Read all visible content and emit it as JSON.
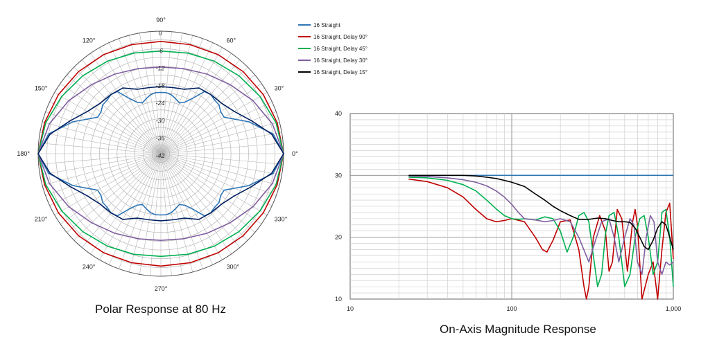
{
  "chart_data": [
    {
      "type": "polar",
      "title": "Polar Response at 80 Hz",
      "angle_labels": [
        "0°",
        "30°",
        "60°",
        "90°",
        "120°",
        "150°",
        "180°",
        "210°",
        "240°",
        "270°",
        "300°",
        "330°"
      ],
      "radial_labels": [
        "0",
        "-6",
        "-12",
        "-18",
        "-24",
        "-30",
        "-36",
        "-42"
      ],
      "rlim": [
        -42,
        0
      ],
      "series": [
        {
          "name": "16 Straight",
          "color": "#2e75b6",
          "angles": [
            0,
            10,
            20,
            30,
            35,
            40,
            45,
            50,
            55,
            60,
            65,
            70,
            75,
            80,
            85,
            90,
            95,
            100,
            105,
            110,
            115,
            120,
            125,
            130,
            135,
            140,
            145,
            150,
            160,
            170,
            180
          ],
          "values": [
            0,
            -3,
            -10,
            -17,
            -17,
            -16,
            -16,
            -15.5,
            -16,
            -20,
            -22.5,
            -23.5,
            -22.5,
            -21.5,
            -21,
            -21,
            -21,
            -21.5,
            -22.5,
            -23.5,
            -22.5,
            -20,
            -16,
            -15.5,
            -16,
            -16,
            -17,
            -17,
            -10,
            -3,
            0
          ]
        },
        {
          "name": "16 Straight, Delay 90°",
          "color": "#c00000",
          "angles": [
            0,
            15,
            30,
            45,
            60,
            75,
            90,
            105,
            120,
            135,
            150,
            165,
            180
          ],
          "values": [
            0,
            -0.8,
            -1.5,
            -2.2,
            -2.8,
            -3.3,
            -3.5,
            -3.3,
            -2.8,
            -2.2,
            -1.5,
            -0.8,
            0
          ]
        },
        {
          "name": "16 Straight, Delay 45°",
          "color": "#00b050",
          "angles": [
            0,
            15,
            30,
            45,
            60,
            75,
            90,
            105,
            120,
            135,
            150,
            165,
            180
          ],
          "values": [
            0,
            -1.2,
            -2.8,
            -4.2,
            -5.4,
            -6.3,
            -6.8,
            -6.3,
            -5.4,
            -4.2,
            -2.8,
            -1.2,
            0
          ]
        },
        {
          "name": "16 Straight, Delay 30°",
          "color": "#7f5fa0",
          "angles": [
            0,
            15,
            30,
            45,
            60,
            75,
            90,
            105,
            120,
            135,
            150,
            165,
            180
          ],
          "values": [
            0,
            -2.5,
            -5.6,
            -8.5,
            -10.5,
            -11.8,
            -12.3,
            -11.8,
            -10.5,
            -8.5,
            -5.6,
            -2.5,
            0
          ]
        },
        {
          "name": "16 Straight, Delay 15°",
          "color": "#002060",
          "angles": [
            0,
            10,
            20,
            30,
            40,
            50,
            60,
            70,
            80,
            90,
            100,
            110,
            120,
            130,
            140,
            150,
            160,
            170,
            180
          ],
          "values": [
            0,
            -3.5,
            -9,
            -13,
            -15,
            -15.5,
            -16,
            -18.5,
            -19,
            -19,
            -19,
            -18.5,
            -16,
            -15.5,
            -15,
            -13,
            -9,
            -3.5,
            0
          ]
        }
      ]
    },
    {
      "type": "line",
      "title": "On-Axis Magnitude Response",
      "x_scale": "log",
      "xlim": [
        10,
        1000
      ],
      "ylim": [
        10,
        40
      ],
      "x_ticks": [
        10,
        100,
        1000
      ],
      "x_tick_labels": [
        "10",
        "100",
        "1,000"
      ],
      "y_ticks": [
        10,
        20,
        30,
        40
      ],
      "y_tick_labels": [
        "10",
        "20",
        "30",
        "40"
      ],
      "grid": true,
      "legend_position": "top-left",
      "series": [
        {
          "name": "16 Straight",
          "color": "#2e75b6",
          "x": [
            23,
            1000
          ],
          "y": [
            30,
            30
          ]
        },
        {
          "name": "16 Straight, Delay 90°",
          "color": "#c00000",
          "x": [
            23,
            30,
            40,
            50,
            60,
            70,
            80,
            90,
            100,
            120,
            140,
            155,
            165,
            180,
            200,
            230,
            260,
            280,
            290,
            300,
            320,
            350,
            380,
            400,
            420,
            450,
            480,
            520,
            560,
            580,
            600,
            640,
            700,
            750,
            800,
            850,
            900,
            950,
            1000
          ],
          "y": [
            29.4,
            29.0,
            28.0,
            26.5,
            24.5,
            23.0,
            22.5,
            22.7,
            23.0,
            22.5,
            20.0,
            18.0,
            17.6,
            19.5,
            22.5,
            22.8,
            18.0,
            12.0,
            9.0,
            12.0,
            20.0,
            23.5,
            21.0,
            14.5,
            16.0,
            24.5,
            23.0,
            14.5,
            22.5,
            24.5,
            22.0,
            9.0,
            14.0,
            16.0,
            10.0,
            18.0,
            24.0,
            25.5,
            16.5
          ]
        },
        {
          "name": "16 Straight, Delay 45°",
          "color": "#00b050",
          "x": [
            23,
            30,
            40,
            50,
            60,
            70,
            80,
            90,
            100,
            110,
            120,
            140,
            160,
            180,
            200,
            220,
            240,
            260,
            280,
            300,
            320,
            340,
            360,
            380,
            400,
            430,
            460,
            500,
            540,
            580,
            620,
            660,
            700,
            750,
            800,
            850,
            900,
            950,
            1000
          ],
          "y": [
            29.7,
            29.6,
            29.2,
            28.5,
            27.5,
            26.0,
            24.6,
            23.5,
            23.0,
            22.9,
            23.0,
            22.8,
            23.3,
            23.0,
            21.0,
            17.6,
            20.0,
            23.5,
            24.0,
            22.5,
            17.0,
            12.0,
            14.0,
            20.5,
            23.5,
            24.0,
            20.0,
            12.0,
            14.0,
            20.0,
            23.0,
            23.5,
            20.0,
            14.0,
            16.0,
            24.0,
            24.5,
            20.0,
            12.0
          ]
        },
        {
          "name": "16 Straight, Delay 30°",
          "color": "#7f5fa0",
          "x": [
            23,
            30,
            40,
            50,
            60,
            70,
            80,
            90,
            100,
            110,
            120,
            140,
            160,
            180,
            200,
            230,
            260,
            300,
            330,
            360,
            400,
            430,
            460,
            500,
            540,
            570,
            600,
            640,
            680,
            720,
            760,
            800,
            850,
            900,
            950,
            1000
          ],
          "y": [
            29.9,
            29.8,
            29.6,
            29.3,
            28.9,
            28.3,
            27.5,
            26.5,
            25.3,
            24.0,
            23.0,
            22.8,
            22.5,
            22.7,
            23.0,
            22.5,
            20.0,
            16.0,
            19.5,
            22.5,
            23.0,
            20.0,
            16.0,
            20.0,
            23.0,
            22.0,
            16.0,
            14.0,
            20.0,
            23.5,
            22.5,
            16.0,
            14.0,
            16.0,
            15.5,
            16.0
          ]
        },
        {
          "name": "16 Straight, Delay 15°",
          "color": "#000000",
          "x": [
            23,
            30,
            40,
            50,
            60,
            70,
            80,
            90,
            100,
            120,
            140,
            160,
            180,
            200,
            230,
            260,
            300,
            340,
            380,
            420,
            460,
            500,
            540,
            580,
            620,
            660,
            700,
            750,
            800,
            850,
            900,
            950,
            1000
          ],
          "y": [
            30.0,
            30.0,
            30.0,
            30.0,
            29.9,
            29.7,
            29.5,
            29.2,
            28.9,
            28.2,
            27.0,
            26.0,
            25.0,
            24.3,
            23.5,
            22.9,
            22.9,
            23.1,
            23.0,
            22.7,
            22.5,
            22.5,
            22.4,
            21.5,
            20.0,
            18.5,
            18.0,
            19.5,
            21.5,
            22.5,
            22.0,
            20.0,
            18.0
          ]
        }
      ]
    }
  ]
}
